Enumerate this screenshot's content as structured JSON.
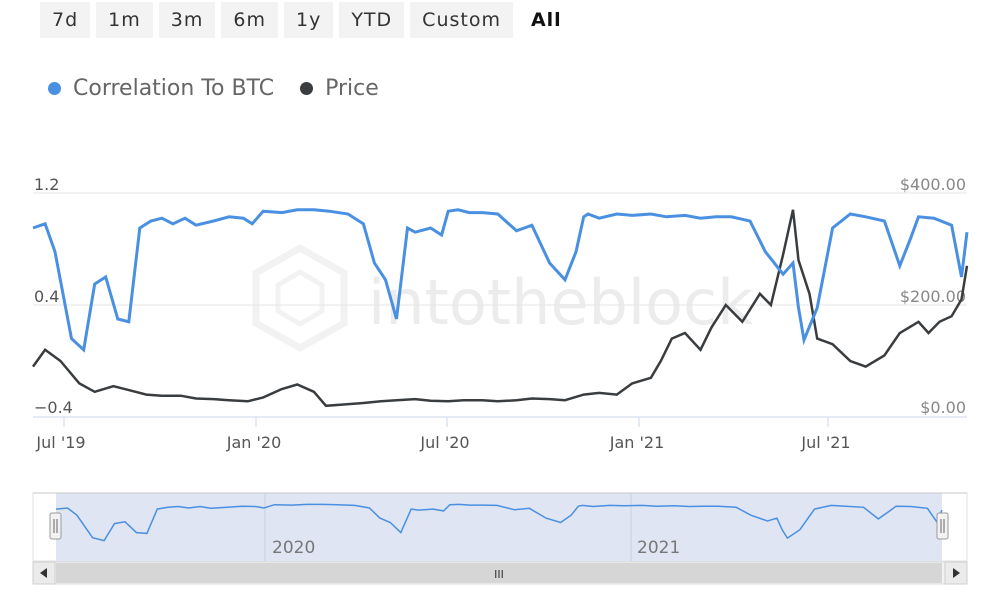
{
  "range_selector": {
    "buttons": [
      "7d",
      "1m",
      "3m",
      "6m",
      "1y",
      "YTD",
      "Custom",
      "All"
    ],
    "active": "All"
  },
  "legend": [
    {
      "label": "Correlation To BTC",
      "color": "#4a90e2"
    },
    {
      "label": "Price",
      "color": "#3a3d40"
    }
  ],
  "watermark": "intotheblock",
  "navigator": {
    "labels": [
      "2020",
      "2021"
    ],
    "scroll_handle": "III"
  },
  "chart_data": {
    "type": "line",
    "title": "",
    "x_ticks": [
      "Jul '19",
      "Jan '20",
      "Jul '20",
      "Jan '21",
      "Jul '21"
    ],
    "y_left": {
      "ticks": [
        "1.2",
        "0.4",
        "−0.4"
      ],
      "range": [
        -0.4,
        1.2
      ]
    },
    "y_right": {
      "ticks": [
        "$400.00",
        "$200.00",
        "$0.00"
      ],
      "range": [
        0,
        400
      ]
    },
    "x_range": [
      "2019-06-20",
      "2021-10-15"
    ],
    "series": [
      {
        "name": "Correlation To BTC",
        "color": "#4a90e2",
        "axis": "left",
        "x": [
          "2019-06-20",
          "2019-07-01",
          "2019-07-10",
          "2019-07-25",
          "2019-08-05",
          "2019-08-15",
          "2019-08-25",
          "2019-09-05",
          "2019-09-15",
          "2019-09-25",
          "2019-10-05",
          "2019-10-15",
          "2019-10-25",
          "2019-11-05",
          "2019-11-15",
          "2019-12-01",
          "2019-12-15",
          "2019-12-28",
          "2020-01-05",
          "2020-01-15",
          "2020-02-01",
          "2020-02-15",
          "2020-03-01",
          "2020-03-15",
          "2020-04-01",
          "2020-04-15",
          "2020-04-25",
          "2020-05-05",
          "2020-05-15",
          "2020-05-25",
          "2020-06-01",
          "2020-06-15",
          "2020-06-25",
          "2020-07-01",
          "2020-07-10",
          "2020-07-20",
          "2020-08-01",
          "2020-08-15",
          "2020-09-01",
          "2020-09-15",
          "2020-10-01",
          "2020-10-15",
          "2020-10-25",
          "2020-11-01",
          "2020-11-05",
          "2020-11-15",
          "2020-12-01",
          "2020-12-15",
          "2021-01-01",
          "2021-01-15",
          "2021-02-01",
          "2021-02-15",
          "2021-03-01",
          "2021-03-15",
          "2021-04-01",
          "2021-04-15",
          "2021-05-01",
          "2021-05-10",
          "2021-05-15",
          "2021-05-20",
          "2021-06-01",
          "2021-06-15",
          "2021-07-01",
          "2021-07-15",
          "2021-08-01",
          "2021-08-15",
          "2021-08-25",
          "2021-09-01",
          "2021-09-15",
          "2021-10-01",
          "2021-10-10",
          "2021-10-15"
        ],
        "values": [
          0.95,
          0.98,
          0.78,
          0.16,
          0.08,
          0.55,
          0.6,
          0.3,
          0.28,
          0.95,
          1.0,
          1.02,
          0.98,
          1.02,
          0.97,
          1.0,
          1.03,
          1.02,
          0.98,
          1.07,
          1.06,
          1.08,
          1.08,
          1.07,
          1.05,
          0.98,
          0.7,
          0.58,
          0.3,
          0.95,
          0.92,
          0.95,
          0.9,
          1.07,
          1.08,
          1.06,
          1.06,
          1.05,
          0.93,
          0.97,
          0.7,
          0.58,
          0.78,
          1.03,
          1.05,
          1.02,
          1.05,
          1.04,
          1.05,
          1.03,
          1.04,
          1.02,
          1.03,
          1.03,
          1.0,
          0.78,
          0.62,
          0.7,
          0.38,
          0.15,
          0.38,
          0.95,
          1.05,
          1.03,
          1.0,
          0.68,
          0.88,
          1.03,
          1.02,
          0.97,
          0.6,
          0.92
        ]
      },
      {
        "name": "Price",
        "color": "#3a3d40",
        "axis": "right",
        "x": [
          "2019-06-20",
          "2019-07-01",
          "2019-07-15",
          "2019-08-01",
          "2019-08-15",
          "2019-09-01",
          "2019-09-15",
          "2019-10-01",
          "2019-10-15",
          "2019-11-01",
          "2019-11-15",
          "2019-12-01",
          "2019-12-15",
          "2020-01-01",
          "2020-01-15",
          "2020-02-01",
          "2020-02-15",
          "2020-03-01",
          "2020-03-12",
          "2020-03-25",
          "2020-04-15",
          "2020-05-01",
          "2020-05-15",
          "2020-06-01",
          "2020-06-15",
          "2020-07-01",
          "2020-07-15",
          "2020-08-01",
          "2020-08-15",
          "2020-09-01",
          "2020-09-15",
          "2020-10-01",
          "2020-10-15",
          "2020-11-01",
          "2020-11-15",
          "2020-12-01",
          "2020-12-15",
          "2021-01-01",
          "2021-01-10",
          "2021-01-20",
          "2021-02-01",
          "2021-02-15",
          "2021-02-25",
          "2021-03-10",
          "2021-03-25",
          "2021-04-10",
          "2021-04-20",
          "2021-05-01",
          "2021-05-10",
          "2021-05-15",
          "2021-05-20",
          "2021-05-25",
          "2021-06-01",
          "2021-06-15",
          "2021-07-01",
          "2021-07-15",
          "2021-08-01",
          "2021-08-15",
          "2021-09-01",
          "2021-09-10",
          "2021-09-20",
          "2021-10-01",
          "2021-10-10",
          "2021-10-15"
        ],
        "values": [
          90,
          120,
          100,
          60,
          45,
          55,
          48,
          40,
          38,
          38,
          33,
          32,
          30,
          28,
          35,
          50,
          58,
          45,
          20,
          22,
          25,
          28,
          30,
          32,
          29,
          28,
          30,
          30,
          28,
          30,
          33,
          32,
          30,
          40,
          43,
          40,
          60,
          70,
          100,
          140,
          150,
          120,
          160,
          200,
          170,
          220,
          200,
          290,
          370,
          280,
          250,
          220,
          140,
          130,
          100,
          90,
          110,
          150,
          170,
          150,
          170,
          180,
          210,
          270
        ]
      }
    ]
  }
}
